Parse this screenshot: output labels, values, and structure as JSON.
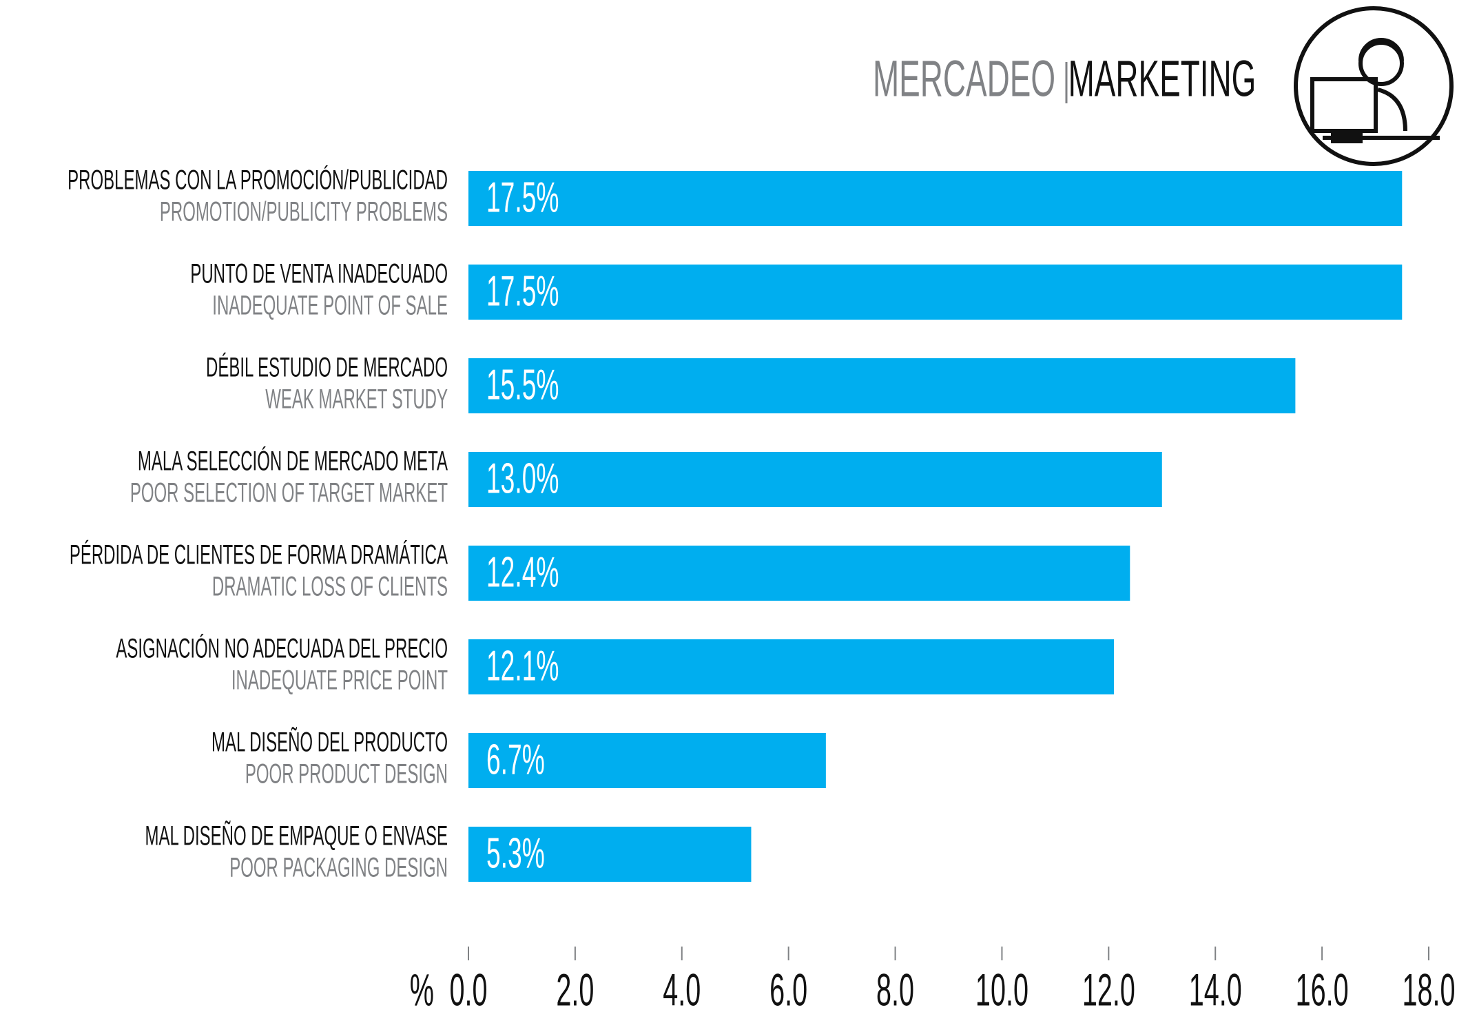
{
  "chart_data": {
    "type": "barh",
    "title": "MERCADEO",
    "title_translation": "MARKETING",
    "categories": [
      "PROBLEMAS CON LA PROMOCIÓN/PUBLICIDAD",
      "PUNTO DE VENTA INADECUADO",
      "DÉBIL ESTUDIO DE MERCADO",
      "MALA SELECCIÓN DE MERCADO META",
      "PÉRDIDA DE CLIENTES DE FORMA DRAMÁTICA",
      "ASIGNACIÓN NO ADECUADA DEL PRECIO",
      "MAL DISEÑO DEL PRODUCTO",
      "MAL DISEÑO DE EMPAQUE O ENVASE"
    ],
    "category_translations": [
      "PROMOTION/PUBLICITY PROBLEMS",
      "INADEQUATE POINT OF SALE",
      "WEAK MARKET STUDY",
      "POOR SELECTION OF TARGET MARKET",
      "DRAMATIC LOSS OF CLIENTS",
      "INADEQUATE PRICE POINT",
      "POOR PRODUCT DESIGN",
      "POOR PACKAGING DESIGN"
    ],
    "values": [
      17.5,
      17.5,
      15.5,
      13.0,
      12.4,
      12.1,
      6.7,
      5.3
    ],
    "value_labels": [
      "17.5%",
      "17.5%",
      "15.5%",
      "13.0%",
      "12.4%",
      "12.1%",
      "6.7%",
      "5.3%"
    ],
    "color": "#00aeef",
    "x_unit_label": "%",
    "xlim": [
      0,
      18
    ],
    "xticks": [
      {
        "value": 0,
        "label": "0.0"
      },
      {
        "value": 2,
        "label": "2.0"
      },
      {
        "value": 4,
        "label": "4.0"
      },
      {
        "value": 6,
        "label": "6.0"
      },
      {
        "value": 8,
        "label": "8.0"
      },
      {
        "value": 10,
        "label": "10.0"
      },
      {
        "value": 12,
        "label": "12.0"
      },
      {
        "value": 14,
        "label": "14.0"
      },
      {
        "value": 16,
        "label": "16.0"
      },
      {
        "value": 18,
        "label": "18.0"
      }
    ]
  }
}
